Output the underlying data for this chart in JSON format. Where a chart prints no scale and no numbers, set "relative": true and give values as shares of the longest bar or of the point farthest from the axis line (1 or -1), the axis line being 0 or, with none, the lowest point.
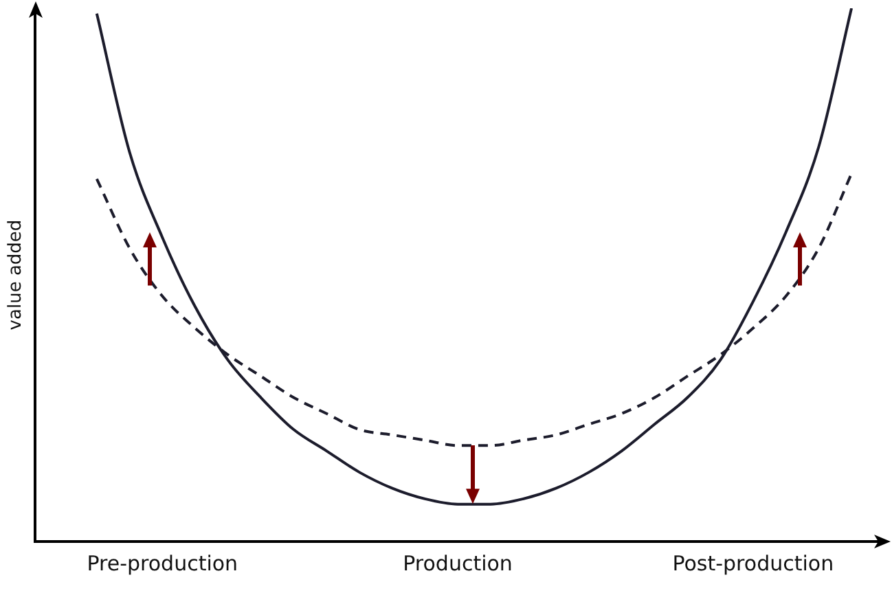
{
  "chart_data": {
    "type": "line",
    "ylabel": "value added",
    "relative": true,
    "legend": false,
    "grid": false,
    "marker": "none",
    "categories": [
      null,
      null,
      "Pre-production",
      null,
      null,
      null,
      null,
      null,
      null,
      null,
      null,
      "Production",
      null,
      null,
      null,
      null,
      null,
      null,
      null,
      null,
      "Post-production",
      null,
      null,
      null
    ],
    "series": [
      {
        "color": "#1c1c2c",
        "line_style": "solid",
        "values": [
          0.99,
          0.73,
          0.57,
          0.44,
          0.34,
          0.27,
          0.21,
          0.17,
          0.13,
          0.1,
          0.08,
          0.07,
          0.07,
          0.08,
          0.1,
          0.13,
          0.17,
          0.22,
          0.27,
          0.34,
          0.45,
          0.58,
          0.74,
          1
        ]
      },
      {
        "color": "#1c1c2c",
        "line_style": "dashed",
        "values": [
          0.68,
          0.55,
          0.46,
          0.4,
          0.35,
          0.31,
          0.27,
          0.24,
          0.21,
          0.2,
          0.19,
          0.18,
          0.18,
          0.19,
          0.2,
          0.22,
          0.24,
          0.27,
          0.31,
          0.35,
          0.4,
          0.46,
          0.55,
          0.69
        ]
      }
    ]
  }
}
